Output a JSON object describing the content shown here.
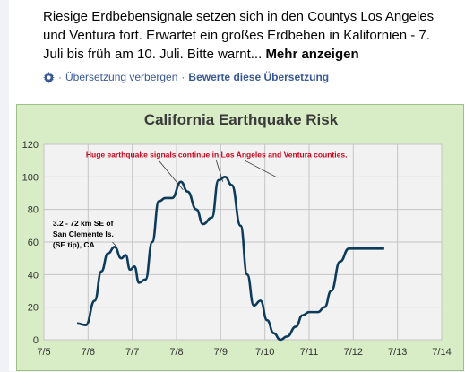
{
  "post": {
    "text": "Riesige Erdbebensignale setzen sich in den Countys Los Angeles und Ventura fort. Erwartet ein großes Erdbeben in Kalifornien - 7. Juli bis früh am 10. Juli. Bitte warnt...",
    "more_label": "Mehr anzeigen"
  },
  "translation": {
    "hide_label": "Übersetzung verbergen",
    "separator": "·",
    "rate_label": "Bewerte diese Übersetzung",
    "icon": "gear-icon"
  },
  "chart_data": {
    "type": "line",
    "title": "California Earthquake Risk",
    "xlabel": "",
    "ylabel": "",
    "x_ticks": [
      "7/5",
      "7/6",
      "7/7",
      "7/8",
      "7/9",
      "7/10",
      "7/11",
      "7/12",
      "7/13",
      "7/14"
    ],
    "y_ticks": [
      0,
      20,
      40,
      60,
      80,
      100,
      120
    ],
    "ylim": [
      0,
      120
    ],
    "xlim": [
      0,
      9
    ],
    "grid": true,
    "line_color": "#0d3b59",
    "annotation_color": "#d0021b",
    "series": [
      {
        "x": [
          0.75,
          0.95,
          1.15,
          1.3,
          1.45,
          1.6,
          1.75,
          1.85,
          1.95,
          2.05,
          2.15,
          2.3,
          2.45,
          2.6,
          2.75,
          2.9,
          3.1,
          3.25,
          3.45,
          3.6,
          3.8,
          3.95,
          4.1,
          4.25,
          4.45,
          4.6,
          4.75,
          4.9,
          5.05,
          5.2,
          5.35,
          5.5,
          5.7,
          5.85,
          6.0,
          6.1,
          6.2,
          6.35,
          6.5,
          6.7,
          6.9,
          7.1,
          7.3,
          7.5,
          7.7
        ],
        "y": [
          10,
          9,
          24,
          42,
          53,
          57,
          50,
          52,
          43,
          45,
          35,
          37,
          60,
          85,
          87,
          87,
          97,
          91,
          80,
          71,
          75,
          98,
          100,
          95,
          70,
          40,
          21,
          24,
          12,
          4,
          0,
          2,
          8,
          15,
          17,
          17,
          17,
          20,
          30,
          48,
          56,
          56,
          56,
          56,
          56
        ]
      }
    ],
    "annotations": [
      {
        "text": "Huge earthquake signals continue in Los Angeles and Ventura counties.",
        "color": "red"
      },
      {
        "text": "3.2 - 72 km SE of",
        "color": "black"
      },
      {
        "text": "San Clemente Is.",
        "color": "black"
      },
      {
        "text": "(SE tip), CA",
        "color": "black"
      }
    ]
  }
}
